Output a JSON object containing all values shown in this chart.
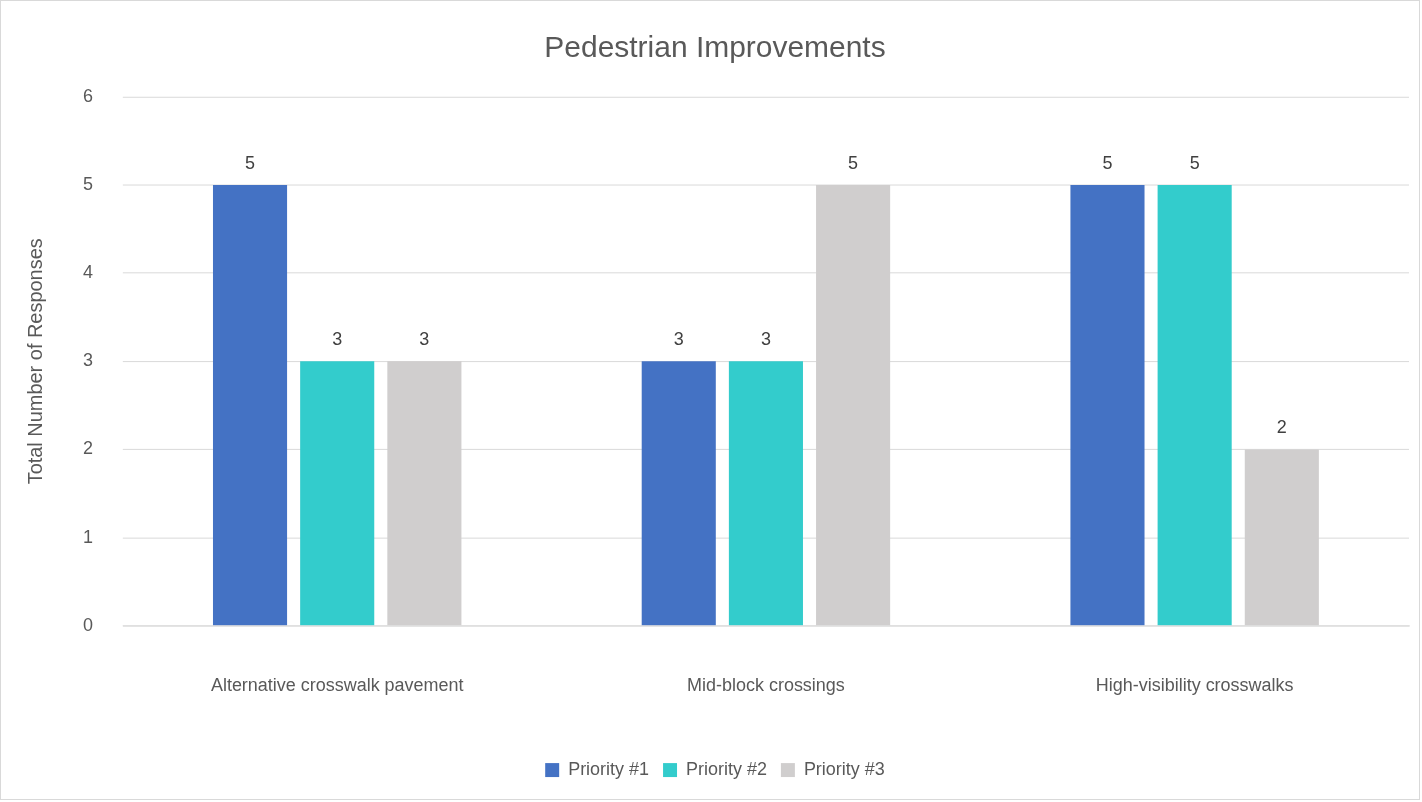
{
  "chart_data": {
    "type": "bar",
    "title": "Pedestrian Improvements",
    "ylabel": "Total Number of Responses",
    "categories": [
      "Alternative crosswalk pavement",
      "Mid-block crossings",
      "High-visibility crosswalks"
    ],
    "series": [
      {
        "name": "Priority #1",
        "color": "#4472c4",
        "values": [
          5,
          3,
          5
        ]
      },
      {
        "name": "Priority #2",
        "color": "#33cccc",
        "values": [
          3,
          3,
          5
        ]
      },
      {
        "name": "Priority #3",
        "color": "#d0cece",
        "values": [
          3,
          5,
          2
        ]
      }
    ],
    "ylim": [
      0,
      6
    ],
    "yticks": [
      0,
      1,
      2,
      3,
      4,
      5,
      6
    ],
    "grid": "y",
    "legend": "bottom",
    "data_labels": true
  }
}
